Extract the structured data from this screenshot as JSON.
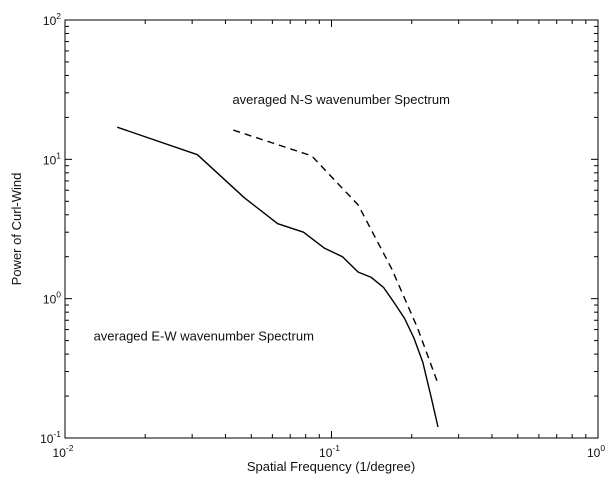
{
  "chart_data": {
    "type": "line",
    "title": "",
    "xlabel": "Spatial Frequency (1/degree)",
    "ylabel": "Power of Curl-Wind",
    "xscale": "log",
    "yscale": "log",
    "xlim": [
      0.01,
      1
    ],
    "ylim": [
      0.1,
      100
    ],
    "grid": false,
    "x_ticks": [
      {
        "value": 0.01,
        "base": "10",
        "exp": "-2"
      },
      {
        "value": 0.1,
        "base": "10",
        "exp": "-1"
      },
      {
        "value": 1,
        "base": "10",
        "exp": "0"
      }
    ],
    "y_ticks": [
      {
        "value": 0.1,
        "base": "10",
        "exp": "-1"
      },
      {
        "value": 1,
        "base": "10",
        "exp": "0"
      },
      {
        "value": 10,
        "base": "10",
        "exp": "1"
      },
      {
        "value": 100,
        "base": "10",
        "exp": "2"
      }
    ],
    "series": [
      {
        "style": "solid",
        "color": "#000000",
        "x": [
          0.0157,
          0.0314,
          0.0471,
          0.0628,
          0.0785,
          0.0942,
          0.11,
          0.126,
          0.141,
          0.157,
          0.173,
          0.188,
          0.204,
          0.22,
          0.236,
          0.251
        ],
        "y": [
          17.0,
          10.8,
          5.3,
          3.45,
          3.0,
          2.3,
          2.0,
          1.55,
          1.42,
          1.2,
          0.92,
          0.72,
          0.52,
          0.35,
          0.2,
          0.12
        ]
      },
      {
        "style": "dashed",
        "color": "#000000",
        "x": [
          0.0428,
          0.0842,
          0.126,
          0.168,
          0.21,
          0.252
        ],
        "y": [
          16.2,
          10.6,
          4.7,
          1.65,
          0.62,
          0.24
        ]
      }
    ],
    "annotations": [
      {
        "text": "averaged N-S wavenumber Spectrum",
        "x": 0.0425,
        "y": 25
      },
      {
        "text": "averaged E-W wavenumber Spectrum",
        "x": 0.0128,
        "y": 0.5
      }
    ]
  }
}
